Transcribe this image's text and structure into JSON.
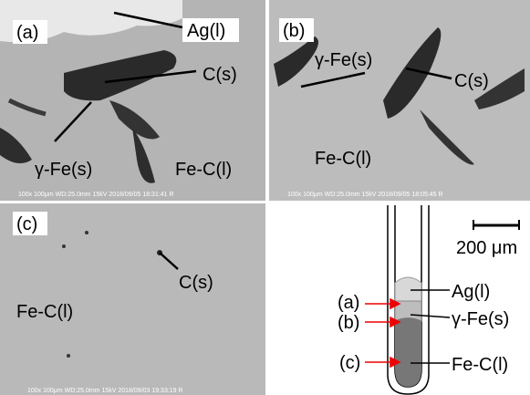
{
  "panels": [
    {
      "label": "(a)",
      "annotations": [
        "Ag(l)",
        "C(s)",
        "γ-Fe(s)",
        "Fe-C(l)"
      ],
      "footer": "100x  100μm  WD:25.0mm  15kV 2018/09/05 18:31:41 R"
    },
    {
      "label": "(b)",
      "annotations": [
        "γ-Fe(s)",
        "C(s)",
        "Fe-C(l)"
      ],
      "footer": "100x  100μm  WD:25.0mm  15kV 2018/09/05 18:05:45 R"
    },
    {
      "label": "(c)",
      "annotations": [
        "C(s)",
        "Fe-C(l)"
      ],
      "footer": "100x  100μm  WD:25.0mm  15kV 2018/09/03 19:33:19 R"
    }
  ],
  "diagram": {
    "scale_bar": "200 μm",
    "positions": [
      "(a)",
      "(b)",
      "(c)"
    ],
    "phases": [
      "Ag(l)",
      "γ-Fe(s)",
      "Fe-C(l)"
    ]
  }
}
